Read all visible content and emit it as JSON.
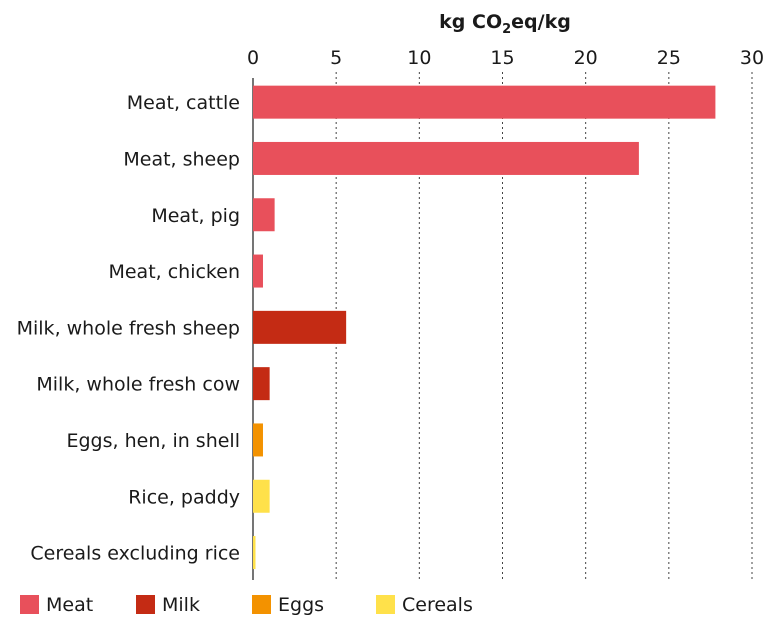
{
  "chart_data": {
    "type": "bar",
    "orientation": "horizontal",
    "unit_label": {
      "main": "kg CO",
      "subscript": "2",
      "rest": "eq/kg"
    },
    "xlim": [
      0,
      30
    ],
    "xticks": [
      0,
      5,
      10,
      15,
      20,
      25,
      30
    ],
    "grid": "vertical dashed",
    "legend_position": "bottom",
    "categories": [
      {
        "label": "Meat, cattle",
        "value": 27.8,
        "group": "Meat"
      },
      {
        "label": "Meat, sheep",
        "value": 23.2,
        "group": "Meat"
      },
      {
        "label": "Meat, pig",
        "value": 1.3,
        "group": "Meat"
      },
      {
        "label": "Meat, chicken",
        "value": 0.6,
        "group": "Meat"
      },
      {
        "label": "Milk, whole fresh sheep",
        "value": 5.6,
        "group": "Milk"
      },
      {
        "label": "Milk, whole fresh cow",
        "value": 1.0,
        "group": "Milk"
      },
      {
        "label": "Eggs, hen, in shell",
        "value": 0.6,
        "group": "Eggs"
      },
      {
        "label": "Rice, paddy",
        "value": 1.0,
        "group": "Cereals"
      },
      {
        "label": "Cereals excluding rice",
        "value": 0.15,
        "group": "Cereals"
      }
    ],
    "legend": [
      {
        "name": "Meat",
        "color": "#e8505b"
      },
      {
        "name": "Milk",
        "color": "#c42b14"
      },
      {
        "name": "Eggs",
        "color": "#f39200"
      },
      {
        "name": "Cereals",
        "color": "#ffe14a"
      }
    ]
  }
}
